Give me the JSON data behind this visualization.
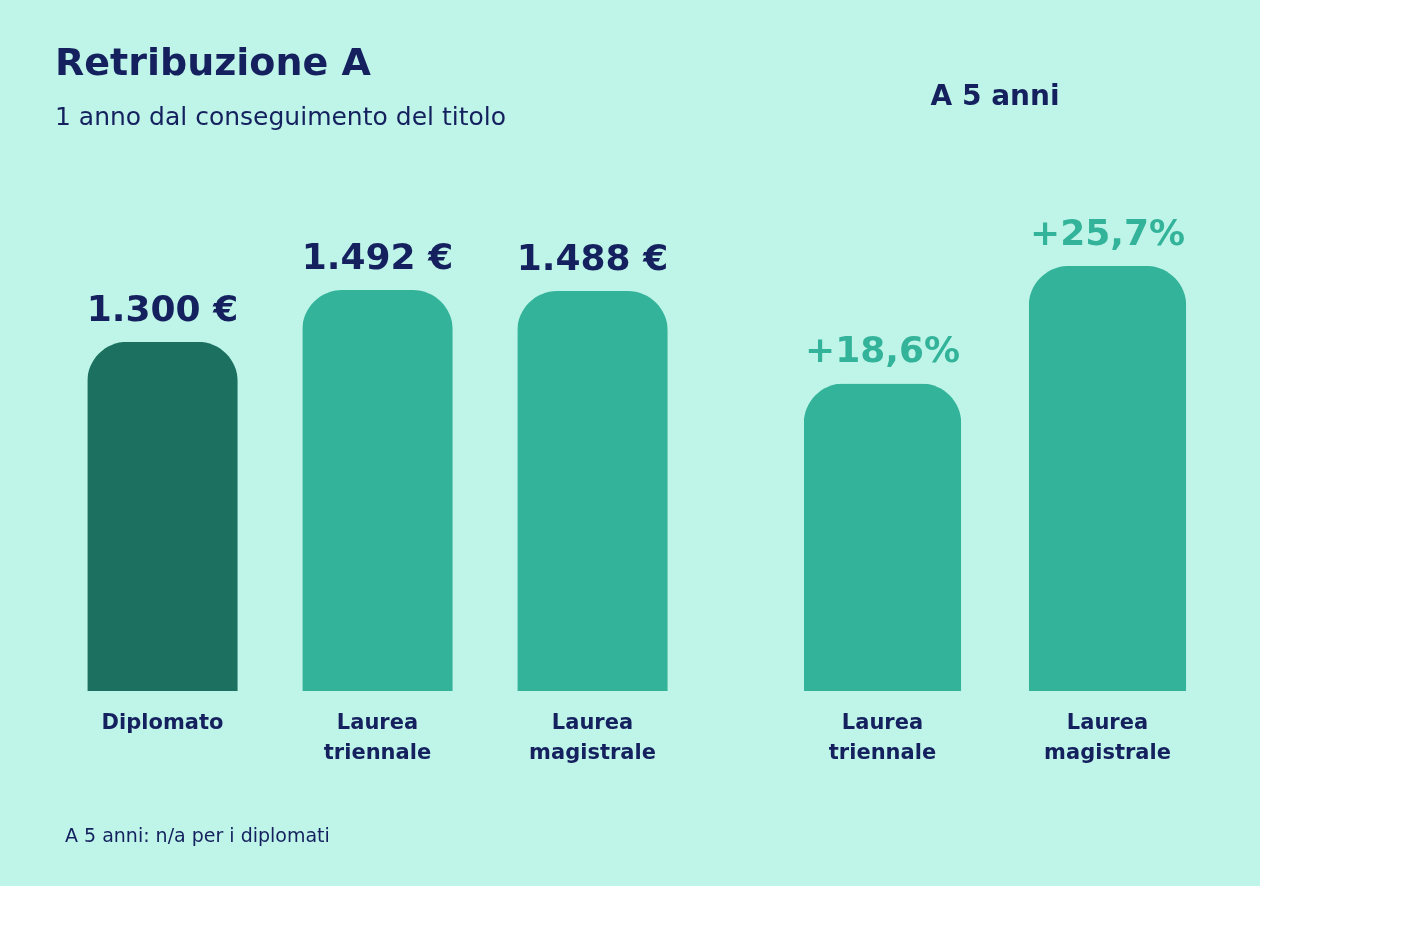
{
  "chart_data": [
    {
      "type": "bar",
      "title": "Retribuzione A",
      "subtitle": "1 anno dal conseguimento del titolo",
      "categories": [
        "Diplomato",
        "Laurea triennale",
        "Laurea magistrale"
      ],
      "values": [
        1300,
        1492,
        1488
      ],
      "colors": [
        "#1b7060",
        "#33b39a",
        "#33b39a"
      ],
      "value_labels": [
        "1.300 €",
        "1.492 €",
        "1.488 €"
      ],
      "annotations": [
        "A 5 anni: n/a per i diplomati"
      ]
    },
    {
      "type": "bar",
      "title": "A 5 anni",
      "categories": [
        "Laurea triennale",
        "Laurea magistrale"
      ],
      "values": [
        18.6,
        25.7
      ],
      "colors": [
        "#33b39a",
        "#33b39a"
      ],
      "value_labels": [
        "+18,6%",
        "+25,7%"
      ]
    }
  ]
}
